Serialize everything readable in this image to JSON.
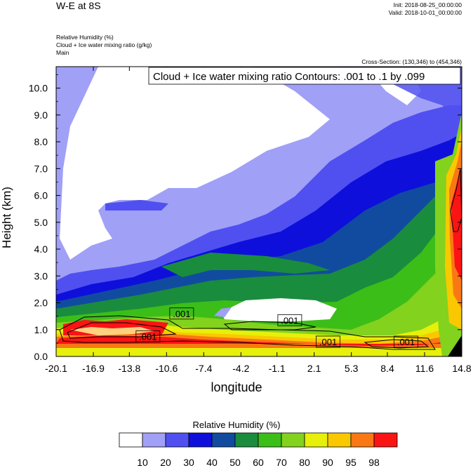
{
  "header": {
    "title": "W-E at 8S",
    "init": "Init: 2018-08-25_00:00:00",
    "valid": "Valid: 2018-10-01_00:00:00",
    "field1": "Relative Humidity   (%)",
    "field2": "Cloud + Ice water mixing ratio   (g/kg)",
    "field3": "Main",
    "cross_section": "Cross-Section: (130,346) to (454,346)"
  },
  "chart_data": {
    "type": "heatmap",
    "contour_label": "Cloud + Ice water mixing ratio Contours: .001 to .1 by .099",
    "xlabel": "longitude",
    "ylabel": "Height (km)",
    "x_ticks": [
      "-20.1",
      "-16.9",
      "-13.8",
      "-10.6",
      "-7.4",
      "-4.2",
      "-1.1",
      "2.1",
      "5.3",
      "8.4",
      "11.6",
      "14.8"
    ],
    "y_ticks": [
      "0.0",
      "1.0",
      "2.0",
      "3.0",
      "4.0",
      "5.0",
      "6.0",
      "7.0",
      "8.0",
      "9.0",
      "10.0"
    ],
    "xlim": [
      -20.1,
      14.8
    ],
    "ylim": [
      0,
      10.8
    ],
    "contour_labels": [
      {
        "text": ".001",
        "x": -9.3,
        "y": 1.6
      },
      {
        "text": ".001",
        "x": -12.2,
        "y": 0.75
      },
      {
        "text": ".001",
        "x": 0.0,
        "y": 1.35
      },
      {
        "text": ".001",
        "x": 3.3,
        "y": 0.55
      },
      {
        "text": ".001",
        "x": 10.0,
        "y": 0.55
      }
    ],
    "legend": {
      "title": "Relative Humidity  (%)",
      "colors": [
        "#ffffff",
        "#a0a0f7",
        "#5050f0",
        "#0f0fdc",
        "#114ba0",
        "#1a8c3d",
        "#3cbe19",
        "#82d21e",
        "#e6f00a",
        "#fac800",
        "#fa7814",
        "#fa1414"
      ],
      "labels": [
        "10",
        "20",
        "30",
        "40",
        "50",
        "60",
        "70",
        "80",
        "90",
        "95",
        "98"
      ]
    }
  }
}
